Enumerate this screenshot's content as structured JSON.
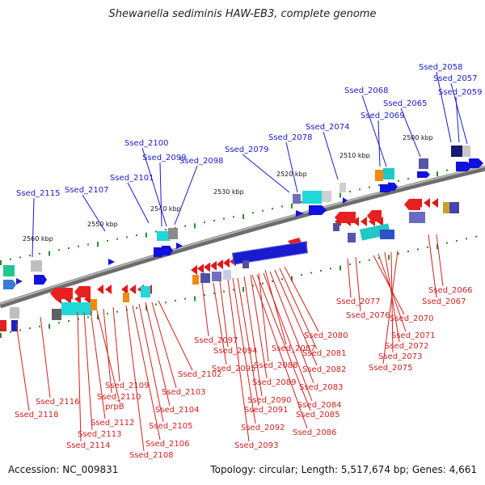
{
  "title": "Shewanella sediminis HAW-EB3, complete genome",
  "accession": "Accession: NC_009831",
  "topology": "Topology: circular; Length: 5,517,674 bp; Genes: 4,661",
  "colors": {
    "backbone": "#8a8a8a",
    "forward_label": "#1a1acc",
    "reverse_label": "#d42020",
    "tick_dots": "#2a8a2a"
  },
  "ticks": [
    {
      "label": "2500 kbp"
    },
    {
      "label": "2510 kbp"
    },
    {
      "label": "2520 kbp"
    },
    {
      "label": "2530 kbp"
    },
    {
      "label": "2540 kbp"
    },
    {
      "label": "2550 kbp"
    },
    {
      "label": "2560 kbp"
    }
  ],
  "forward_labels": [
    "Ssed_2058",
    "Ssed_2057",
    "Ssed_2059",
    "Ssed_2065",
    "Ssed_2068",
    "Ssed_2069",
    "Ssed_2074",
    "Ssed_2078",
    "Ssed_2079",
    "Ssed_2100",
    "Ssed_2099",
    "Ssed_2098",
    "Ssed_2101",
    "Ssed_2107",
    "Ssed_2115"
  ],
  "reverse_labels": [
    "Ssed_2066",
    "Ssed_2067",
    "Ssed_2077",
    "Ssed_2076",
    "Ssed_2070",
    "Ssed_2071",
    "Ssed_2072",
    "Ssed_2073",
    "Ssed_2075",
    "Ssed_2080",
    "Ssed_2081",
    "Ssed_2082",
    "Ssed_2083",
    "Ssed_2084",
    "Ssed_2085",
    "Ssed_2086",
    "Ssed_2087",
    "Ssed_2088",
    "Ssed_2089",
    "Ssed_2090",
    "Ssed_2091",
    "Ssed_2092",
    "Ssed_2093",
    "Ssed_2094",
    "Ssed_2095",
    "Ssed_2097",
    "Ssed_2102",
    "Ssed_2103",
    "Ssed_2104",
    "Ssed_2105",
    "Ssed_2106",
    "Ssed_2108",
    "Ssed_2109",
    "Ssed_2110",
    "prpB",
    "Ssed_2112",
    "Ssed_2113",
    "Ssed_2114",
    "Ssed_2116",
    "Ssed_2118"
  ]
}
